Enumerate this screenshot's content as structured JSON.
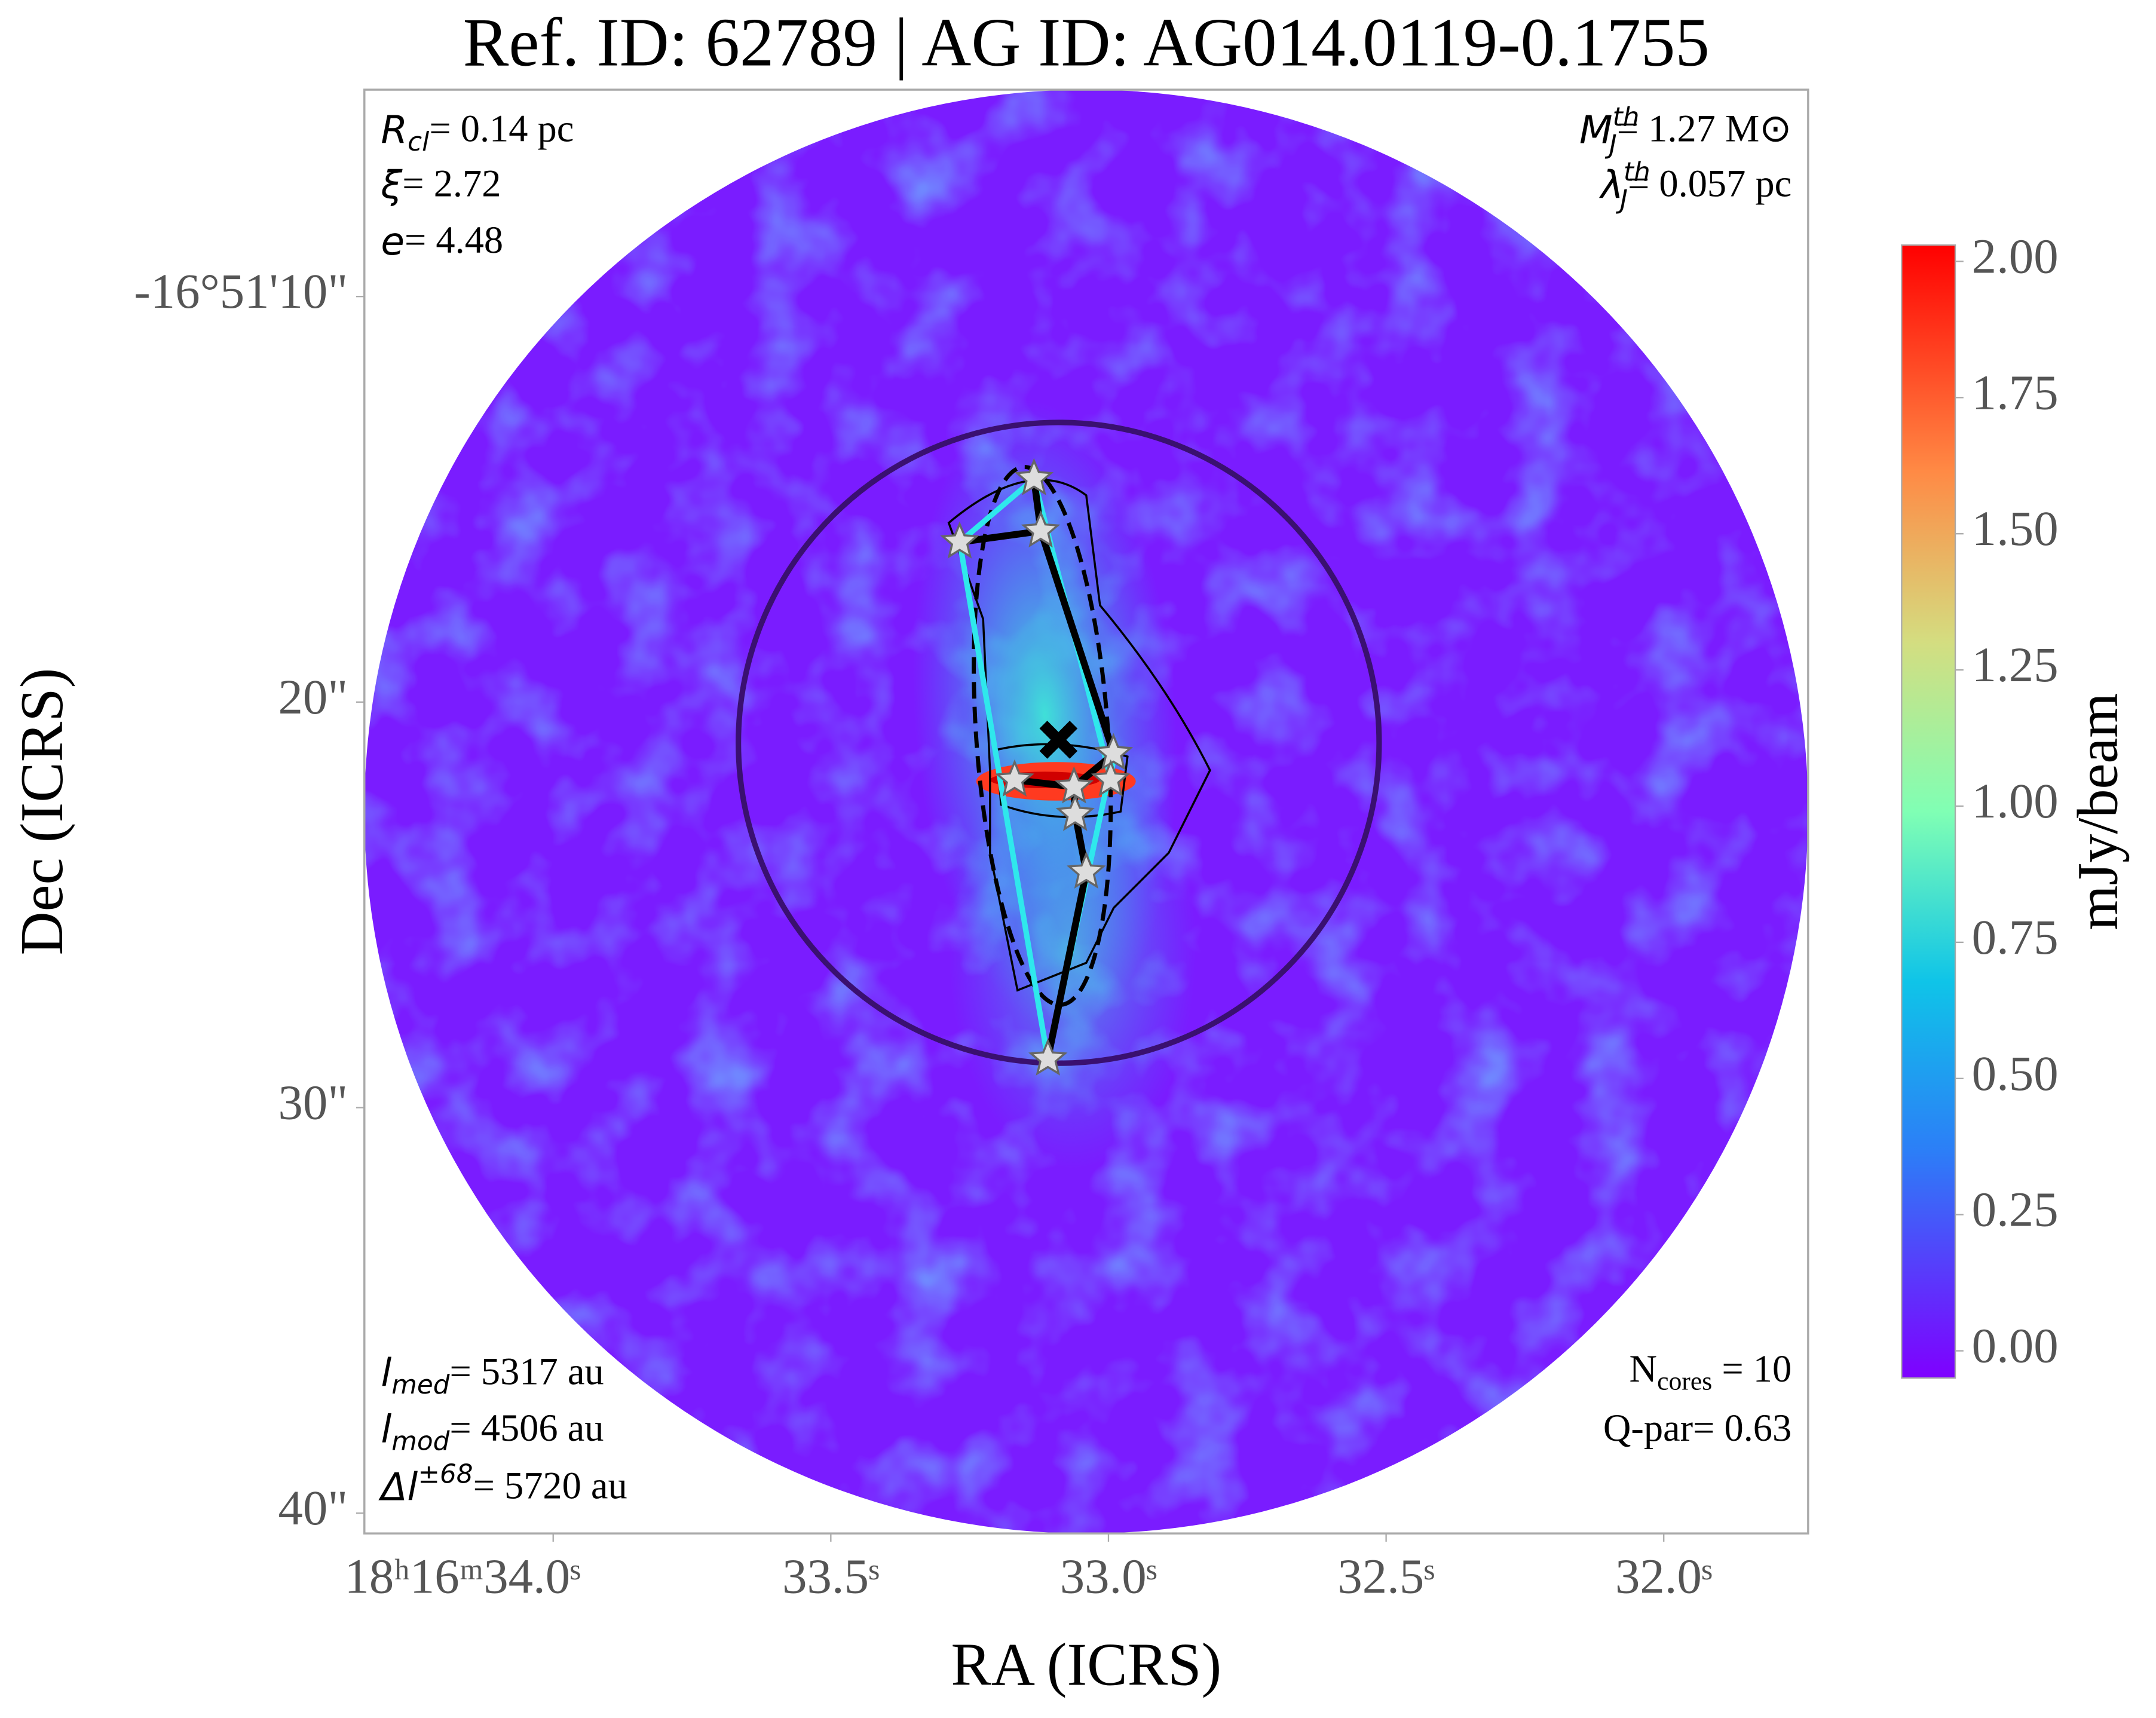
{
  "chart_data": {
    "type": "image",
    "title": "Ref. ID: 62789 | AG ID: AG014.0119-0.1755",
    "x_label": "RA (ICRS)",
    "y_label": "Dec (ICRS)",
    "colorbar_label": "mJy/beam",
    "xlim": [
      34.34,
      31.74
    ],
    "ylim": [
      4.9,
      40.5
    ],
    "xticks": [
      {
        "value": 34.0,
        "label": "18ʰ16ᵐ34.0ˢ"
      },
      {
        "value": 33.5,
        "label": "33.5ˢ"
      },
      {
        "value": 33.0,
        "label": "33.0ˢ"
      },
      {
        "value": 32.5,
        "label": "32.5ˢ"
      },
      {
        "value": 32.0,
        "label": "32.0ˢ"
      }
    ],
    "yticks": [
      {
        "value": 10,
        "label": "-16°51'10\""
      },
      {
        "value": 20,
        "label": "20\""
      },
      {
        "value": 30,
        "label": "30\""
      },
      {
        "value": 40,
        "label": "40\""
      }
    ],
    "colorbar_lim": [
      -0.05,
      2.03
    ],
    "colorbar_ticks": [
      {
        "value": 0,
        "label": "0.00"
      },
      {
        "value": 0.25,
        "label": "0.25"
      },
      {
        "value": 0.5,
        "label": "0.50"
      },
      {
        "value": 0.75,
        "label": "0.75"
      },
      {
        "value": 1,
        "label": "1.00"
      },
      {
        "value": 1.25,
        "label": "1.25"
      },
      {
        "value": 1.5,
        "label": "1.50"
      },
      {
        "value": 1.75,
        "label": "1.75"
      },
      {
        "value": 2,
        "label": "2.00"
      }
    ],
    "cores": {
      "ra": [
        33.134,
        33.122,
        33.268,
        33.169,
        33.062,
        32.991,
        32.996,
        33.06,
        33.04,
        33.109
      ],
      "dec": [
        14.49,
        15.78,
        16.05,
        21.92,
        22.09,
        21.27,
        21.92,
        22.77,
        24.19,
        28.8
      ]
    },
    "center": {
      "ra": 33.09,
      "dec": 20.93
    },
    "annotations": [
      {
        "sym": "R",
        "sub": "cl",
        "text": "= 0.14 pc"
      },
      {
        "sym": "ξ",
        "text": "= 2.72"
      },
      {
        "sym": "e",
        "text": "= 4.48"
      },
      {
        "sym": "M",
        "sup": "th",
        "sub": "J",
        "text": "= 1.27 M⊙"
      },
      {
        "sym": "λ",
        "sup": "th",
        "sub": "J",
        "text": "= 0.057 pc"
      },
      {
        "sym": "l",
        "sub": "med",
        "text": "= 5317 au"
      },
      {
        "sym": "l",
        "sub": "mod",
        "text": "= 4506 au"
      },
      {
        "sym": "Δl",
        "sup": "±68",
        "text": "= 5720 au"
      },
      {
        "sym": "N",
        "sub": "cores",
        "text": " = 10",
        "upright": true
      },
      {
        "text": "Q-par= 0.63"
      }
    ]
  }
}
